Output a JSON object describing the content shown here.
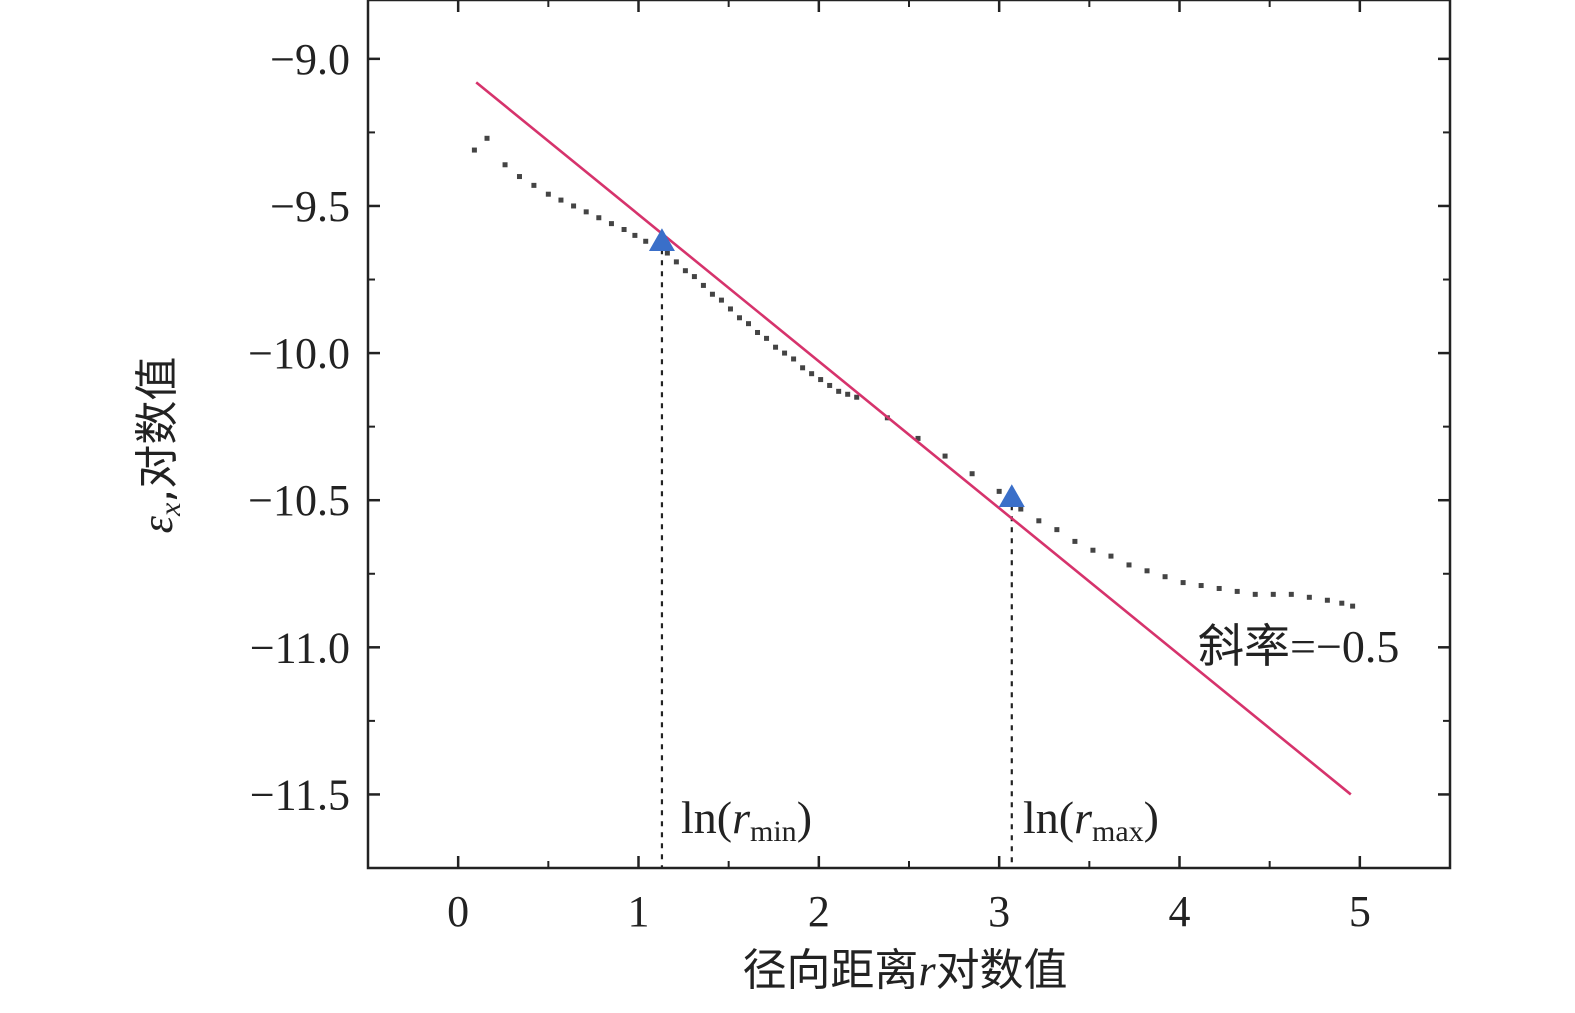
{
  "chart_data": {
    "type": "scatter",
    "xlabel": {
      "pre": "径向距离",
      "var": "r",
      "post": "对数值"
    },
    "ylabel": {
      "var": "ε",
      "sub": "x",
      "post": ",对数值"
    },
    "xlim": [
      -0.5,
      5.5
    ],
    "ylim": [
      -11.75,
      -8.8
    ],
    "xticks": [
      0,
      1,
      2,
      3,
      4,
      5
    ],
    "yticks": [
      -9.0,
      -9.5,
      -10.0,
      -10.5,
      -11.0,
      -11.5
    ],
    "xtick_labels": [
      "0",
      "1",
      "2",
      "3",
      "4",
      "5"
    ],
    "ytick_labels": [
      "−9.0",
      "−9.5",
      "−10.0",
      "−10.5",
      "−11.0",
      "−11.5"
    ],
    "grid": false,
    "colors": {
      "points": "#444444",
      "fit": "#d6336c",
      "markers": "#3a6fc9",
      "axis": "#222222"
    },
    "series": [
      {
        "kind": "points",
        "x": [
          0.09,
          0.16,
          0.26,
          0.34,
          0.42,
          0.5,
          0.57,
          0.64,
          0.71,
          0.78,
          0.85,
          0.92,
          0.98,
          1.04,
          1.1,
          1.16,
          1.21,
          1.26,
          1.31,
          1.36,
          1.41,
          1.46,
          1.51,
          1.56,
          1.61,
          1.66,
          1.71,
          1.76,
          1.81,
          1.86,
          1.91,
          1.96,
          2.01,
          2.06,
          2.11,
          2.16,
          2.21,
          2.38,
          2.55,
          2.7,
          2.85,
          3.0,
          3.12,
          3.22,
          3.32,
          3.42,
          3.52,
          3.62,
          3.72,
          3.82,
          3.92,
          4.02,
          4.12,
          4.22,
          4.32,
          4.42,
          4.52,
          4.62,
          4.72,
          4.82,
          4.9,
          4.96
        ],
        "y": [
          -9.31,
          -9.27,
          -9.36,
          -9.4,
          -9.43,
          -9.46,
          -9.48,
          -9.5,
          -9.52,
          -9.54,
          -9.56,
          -9.58,
          -9.6,
          -9.62,
          -9.64,
          -9.66,
          -9.69,
          -9.72,
          -9.74,
          -9.77,
          -9.8,
          -9.82,
          -9.85,
          -9.88,
          -9.9,
          -9.93,
          -9.95,
          -9.98,
          -10.0,
          -10.02,
          -10.05,
          -10.07,
          -10.09,
          -10.11,
          -10.13,
          -10.14,
          -10.15,
          -10.22,
          -10.29,
          -10.35,
          -10.41,
          -10.47,
          -10.53,
          -10.57,
          -10.6,
          -10.64,
          -10.67,
          -10.69,
          -10.72,
          -10.74,
          -10.76,
          -10.78,
          -10.79,
          -10.8,
          -10.81,
          -10.82,
          -10.82,
          -10.82,
          -10.83,
          -10.84,
          -10.85,
          -10.86
        ]
      },
      {
        "kind": "fit-line",
        "x": [
          0.1,
          4.95
        ],
        "y": [
          -9.08,
          -11.5
        ]
      }
    ],
    "markers": [
      {
        "x": 1.13,
        "y": -9.62
      },
      {
        "x": 3.07,
        "y": -10.49
      }
    ],
    "annotations": {
      "slope": "斜率=−0.5",
      "rmin": {
        "pre": "ln(",
        "var": "r",
        "sub": "min",
        "post": ")"
      },
      "rmax": {
        "pre": "ln(",
        "var": "r",
        "sub": "max",
        "post": ")"
      }
    }
  }
}
